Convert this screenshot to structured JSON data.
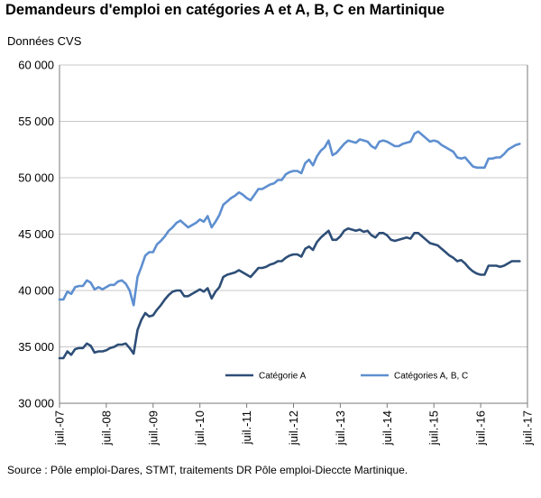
{
  "title": "Demandeurs d'emploi en catégories A et A, B, C en Martinique",
  "subtitle": "Données CVS",
  "source": "Source : Pôle emploi-Dares, STMT, traitements DR Pôle emploi-Dieccte Martinique.",
  "chart_data": {
    "type": "line",
    "ylim": [
      30000,
      60000
    ],
    "yticks": [
      30000,
      35000,
      40000,
      45000,
      50000,
      55000,
      60000
    ],
    "ytick_labels": [
      "30 000",
      "35 000",
      "40 000",
      "45 000",
      "50 000",
      "55 000",
      "60 000"
    ],
    "x_start": "2007-07",
    "x_end": "2017-07",
    "xticks": [
      "2007-07",
      "2008-07",
      "2009-07",
      "2010-07",
      "2011-07",
      "2012-07",
      "2013-07",
      "2014-07",
      "2015-07",
      "2016-07",
      "2017-07"
    ],
    "xtick_labels": [
      "juil.-07",
      "juil.-08",
      "juil.-09",
      "juil.-10",
      "juil.-11",
      "juil.-12",
      "juil.-13",
      "juil.-14",
      "juil.-15",
      "juil.-16",
      "juil.-17"
    ],
    "grid": "horizontal",
    "legend": "bottom-inside",
    "series": [
      {
        "name": "Catégorie A",
        "color": "#2e4e77",
        "points": [
          [
            "2007-07",
            34000
          ],
          [
            "2007-08",
            34000
          ],
          [
            "2007-09",
            34600
          ],
          [
            "2007-10",
            34300
          ],
          [
            "2007-11",
            34800
          ],
          [
            "2007-12",
            34900
          ],
          [
            "2008-01",
            34900
          ],
          [
            "2008-02",
            35300
          ],
          [
            "2008-03",
            35100
          ],
          [
            "2008-04",
            34500
          ],
          [
            "2008-05",
            34600
          ],
          [
            "2008-06",
            34600
          ],
          [
            "2008-07",
            34700
          ],
          [
            "2008-08",
            34900
          ],
          [
            "2008-09",
            35000
          ],
          [
            "2008-10",
            35200
          ],
          [
            "2008-11",
            35200
          ],
          [
            "2008-12",
            35300
          ],
          [
            "2009-01",
            34900
          ],
          [
            "2009-02",
            34400
          ],
          [
            "2009-03",
            36500
          ],
          [
            "2009-04",
            37400
          ],
          [
            "2009-05",
            38000
          ],
          [
            "2009-06",
            37700
          ],
          [
            "2009-07",
            37800
          ],
          [
            "2009-08",
            38300
          ],
          [
            "2009-09",
            38700
          ],
          [
            "2009-10",
            39200
          ],
          [
            "2009-11",
            39600
          ],
          [
            "2009-12",
            39900
          ],
          [
            "2010-01",
            40000
          ],
          [
            "2010-02",
            40000
          ],
          [
            "2010-03",
            39500
          ],
          [
            "2010-04",
            39500
          ],
          [
            "2010-05",
            39700
          ],
          [
            "2010-06",
            39900
          ],
          [
            "2010-07",
            40100
          ],
          [
            "2010-08",
            39900
          ],
          [
            "2010-09",
            40200
          ],
          [
            "2010-10",
            39300
          ],
          [
            "2010-11",
            39900
          ],
          [
            "2010-12",
            40300
          ],
          [
            "2011-01",
            41200
          ],
          [
            "2011-02",
            41400
          ],
          [
            "2011-03",
            41500
          ],
          [
            "2011-04",
            41600
          ],
          [
            "2011-05",
            41800
          ],
          [
            "2011-06",
            41600
          ],
          [
            "2011-07",
            41400
          ],
          [
            "2011-08",
            41200
          ],
          [
            "2011-09",
            41600
          ],
          [
            "2011-10",
            42000
          ],
          [
            "2011-11",
            42000
          ],
          [
            "2011-12",
            42100
          ],
          [
            "2012-01",
            42300
          ],
          [
            "2012-02",
            42400
          ],
          [
            "2012-03",
            42600
          ],
          [
            "2012-04",
            42600
          ],
          [
            "2012-05",
            42900
          ],
          [
            "2012-06",
            43100
          ],
          [
            "2012-07",
            43200
          ],
          [
            "2012-08",
            43200
          ],
          [
            "2012-09",
            43000
          ],
          [
            "2012-10",
            43700
          ],
          [
            "2012-11",
            43900
          ],
          [
            "2012-12",
            43600
          ],
          [
            "2013-01",
            44300
          ],
          [
            "2013-02",
            44700
          ],
          [
            "2013-03",
            45000
          ],
          [
            "2013-04",
            45300
          ],
          [
            "2013-05",
            44500
          ],
          [
            "2013-06",
            44500
          ],
          [
            "2013-07",
            44800
          ],
          [
            "2013-08",
            45300
          ],
          [
            "2013-09",
            45500
          ],
          [
            "2013-10",
            45400
          ],
          [
            "2013-11",
            45300
          ],
          [
            "2013-12",
            45400
          ],
          [
            "2014-01",
            45200
          ],
          [
            "2014-02",
            45300
          ],
          [
            "2014-03",
            44900
          ],
          [
            "2014-04",
            44700
          ],
          [
            "2014-05",
            45100
          ],
          [
            "2014-06",
            45100
          ],
          [
            "2014-07",
            44900
          ],
          [
            "2014-08",
            44500
          ],
          [
            "2014-09",
            44400
          ],
          [
            "2014-10",
            44500
          ],
          [
            "2014-11",
            44600
          ],
          [
            "2014-12",
            44700
          ],
          [
            "2015-01",
            44600
          ],
          [
            "2015-02",
            45100
          ],
          [
            "2015-03",
            45100
          ],
          [
            "2015-04",
            44800
          ],
          [
            "2015-05",
            44500
          ],
          [
            "2015-06",
            44200
          ],
          [
            "2015-07",
            44100
          ],
          [
            "2015-08",
            44000
          ],
          [
            "2015-09",
            43700
          ],
          [
            "2015-10",
            43400
          ],
          [
            "2015-11",
            43100
          ],
          [
            "2015-12",
            42900
          ],
          [
            "2016-01",
            42600
          ],
          [
            "2016-02",
            42700
          ],
          [
            "2016-03",
            42400
          ],
          [
            "2016-04",
            42000
          ],
          [
            "2016-05",
            41700
          ],
          [
            "2016-06",
            41500
          ],
          [
            "2016-07",
            41400
          ],
          [
            "2016-08",
            41400
          ],
          [
            "2016-09",
            42200
          ],
          [
            "2016-10",
            42200
          ],
          [
            "2016-11",
            42200
          ],
          [
            "2016-12",
            42100
          ],
          [
            "2017-01",
            42200
          ],
          [
            "2017-02",
            42400
          ],
          [
            "2017-03",
            42600
          ],
          [
            "2017-04",
            42600
          ],
          [
            "2017-05",
            42600
          ]
        ]
      },
      {
        "name": "Catégories A, B, C",
        "color": "#5e8fd0",
        "points": [
          [
            "2007-07",
            39200
          ],
          [
            "2007-08",
            39200
          ],
          [
            "2007-09",
            39900
          ],
          [
            "2007-10",
            39700
          ],
          [
            "2007-11",
            40300
          ],
          [
            "2007-12",
            40400
          ],
          [
            "2008-01",
            40400
          ],
          [
            "2008-02",
            40900
          ],
          [
            "2008-03",
            40700
          ],
          [
            "2008-04",
            40100
          ],
          [
            "2008-05",
            40300
          ],
          [
            "2008-06",
            40100
          ],
          [
            "2008-07",
            40300
          ],
          [
            "2008-08",
            40500
          ],
          [
            "2008-09",
            40500
          ],
          [
            "2008-10",
            40800
          ],
          [
            "2008-11",
            40900
          ],
          [
            "2008-12",
            40600
          ],
          [
            "2009-01",
            40000
          ],
          [
            "2009-02",
            38700
          ],
          [
            "2009-03",
            41200
          ],
          [
            "2009-04",
            42100
          ],
          [
            "2009-05",
            43100
          ],
          [
            "2009-06",
            43400
          ],
          [
            "2009-07",
            43400
          ],
          [
            "2009-08",
            44100
          ],
          [
            "2009-09",
            44400
          ],
          [
            "2009-10",
            44800
          ],
          [
            "2009-11",
            45300
          ],
          [
            "2009-12",
            45600
          ],
          [
            "2010-01",
            46000
          ],
          [
            "2010-02",
            46200
          ],
          [
            "2010-03",
            45900
          ],
          [
            "2010-04",
            45600
          ],
          [
            "2010-05",
            45800
          ],
          [
            "2010-06",
            46000
          ],
          [
            "2010-07",
            46300
          ],
          [
            "2010-08",
            46100
          ],
          [
            "2010-09",
            46600
          ],
          [
            "2010-10",
            45600
          ],
          [
            "2010-11",
            46100
          ],
          [
            "2010-12",
            46700
          ],
          [
            "2011-01",
            47600
          ],
          [
            "2011-02",
            47900
          ],
          [
            "2011-03",
            48200
          ],
          [
            "2011-04",
            48400
          ],
          [
            "2011-05",
            48700
          ],
          [
            "2011-06",
            48500
          ],
          [
            "2011-07",
            48200
          ],
          [
            "2011-08",
            48000
          ],
          [
            "2011-09",
            48500
          ],
          [
            "2011-10",
            49000
          ],
          [
            "2011-11",
            49000
          ],
          [
            "2011-12",
            49200
          ],
          [
            "2012-01",
            49400
          ],
          [
            "2012-02",
            49500
          ],
          [
            "2012-03",
            49800
          ],
          [
            "2012-04",
            49800
          ],
          [
            "2012-05",
            50300
          ],
          [
            "2012-06",
            50500
          ],
          [
            "2012-07",
            50600
          ],
          [
            "2012-08",
            50600
          ],
          [
            "2012-09",
            50400
          ],
          [
            "2012-10",
            51300
          ],
          [
            "2012-11",
            51600
          ],
          [
            "2012-12",
            51100
          ],
          [
            "2013-01",
            51900
          ],
          [
            "2013-02",
            52400
          ],
          [
            "2013-03",
            52700
          ],
          [
            "2013-04",
            53300
          ],
          [
            "2013-05",
            52000
          ],
          [
            "2013-06",
            52200
          ],
          [
            "2013-07",
            52600
          ],
          [
            "2013-08",
            53000
          ],
          [
            "2013-09",
            53300
          ],
          [
            "2013-10",
            53200
          ],
          [
            "2013-11",
            53100
          ],
          [
            "2013-12",
            53400
          ],
          [
            "2014-01",
            53300
          ],
          [
            "2014-02",
            53200
          ],
          [
            "2014-03",
            52800
          ],
          [
            "2014-04",
            52600
          ],
          [
            "2014-05",
            53200
          ],
          [
            "2014-06",
            53300
          ],
          [
            "2014-07",
            53200
          ],
          [
            "2014-08",
            53000
          ],
          [
            "2014-09",
            52800
          ],
          [
            "2014-10",
            52800
          ],
          [
            "2014-11",
            53000
          ],
          [
            "2014-12",
            53100
          ],
          [
            "2015-01",
            53200
          ],
          [
            "2015-02",
            53900
          ],
          [
            "2015-03",
            54100
          ],
          [
            "2015-04",
            53800
          ],
          [
            "2015-05",
            53500
          ],
          [
            "2015-06",
            53200
          ],
          [
            "2015-07",
            53300
          ],
          [
            "2015-08",
            53200
          ],
          [
            "2015-09",
            52900
          ],
          [
            "2015-10",
            52700
          ],
          [
            "2015-11",
            52500
          ],
          [
            "2015-12",
            52300
          ],
          [
            "2016-01",
            51800
          ],
          [
            "2016-02",
            51700
          ],
          [
            "2016-03",
            51800
          ],
          [
            "2016-04",
            51400
          ],
          [
            "2016-05",
            51000
          ],
          [
            "2016-06",
            50900
          ],
          [
            "2016-07",
            50900
          ],
          [
            "2016-08",
            50900
          ],
          [
            "2016-09",
            51700
          ],
          [
            "2016-10",
            51700
          ],
          [
            "2016-11",
            51800
          ],
          [
            "2016-12",
            51800
          ],
          [
            "2017-01",
            52100
          ],
          [
            "2017-02",
            52500
          ],
          [
            "2017-03",
            52700
          ],
          [
            "2017-04",
            52900
          ],
          [
            "2017-05",
            53000
          ]
        ]
      }
    ]
  }
}
